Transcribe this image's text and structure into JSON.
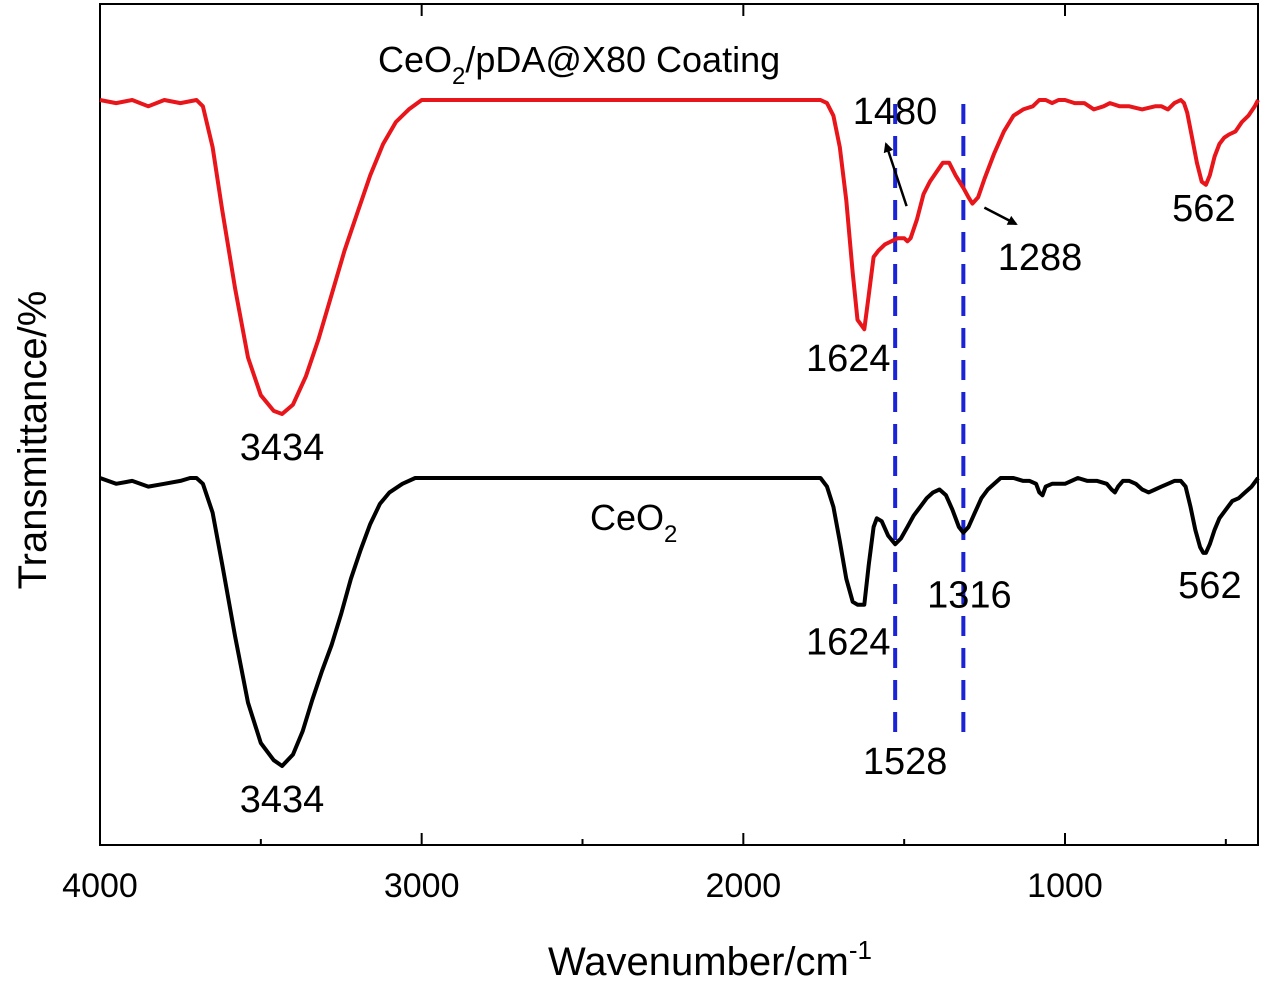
{
  "chart_data": {
    "type": "line",
    "x_axis": {
      "label_main": "Wavenumber/cm",
      "label_sup": "-1",
      "range": [
        4000,
        400
      ],
      "ticks": [
        4000,
        3000,
        2000,
        1000
      ],
      "tick_labels": [
        "4000",
        "3000",
        "2000",
        "1000"
      ],
      "reversed": true
    },
    "y_axis": {
      "label": "Transmittance/%",
      "ticks": false
    },
    "grid": false,
    "series": [
      {
        "key": "coating",
        "name": "CeO₂/pDA@X80 Coating",
        "name_parts": [
          "CeO",
          "2",
          "/pDA@X80 Coating"
        ],
        "color": "#e8151b",
        "points": [
          [
            4000,
            0.0
          ],
          [
            3950,
            0.01
          ],
          [
            3900,
            0.0
          ],
          [
            3850,
            0.02
          ],
          [
            3800,
            0.0
          ],
          [
            3750,
            0.01
          ],
          [
            3700,
            0.0
          ],
          [
            3680,
            0.02
          ],
          [
            3650,
            0.15
          ],
          [
            3620,
            0.35
          ],
          [
            3580,
            0.6
          ],
          [
            3540,
            0.82
          ],
          [
            3500,
            0.94
          ],
          [
            3460,
            0.99
          ],
          [
            3434,
            1.0
          ],
          [
            3400,
            0.97
          ],
          [
            3360,
            0.88
          ],
          [
            3320,
            0.76
          ],
          [
            3280,
            0.62
          ],
          [
            3240,
            0.48
          ],
          [
            3200,
            0.36
          ],
          [
            3160,
            0.24
          ],
          [
            3120,
            0.14
          ],
          [
            3080,
            0.07
          ],
          [
            3040,
            0.03
          ],
          [
            3000,
            0.0
          ],
          [
            2900,
            0.0
          ],
          [
            2700,
            0.0
          ],
          [
            2500,
            0.0
          ],
          [
            2300,
            0.0
          ],
          [
            2100,
            0.0
          ],
          [
            1900,
            0.0
          ],
          [
            1800,
            0.0
          ],
          [
            1760,
            0.0
          ],
          [
            1740,
            0.01
          ],
          [
            1720,
            0.05
          ],
          [
            1700,
            0.15
          ],
          [
            1680,
            0.32
          ],
          [
            1660,
            0.55
          ],
          [
            1645,
            0.7
          ],
          [
            1624,
            0.73
          ],
          [
            1610,
            0.62
          ],
          [
            1595,
            0.5
          ],
          [
            1580,
            0.48
          ],
          [
            1560,
            0.46
          ],
          [
            1540,
            0.45
          ],
          [
            1520,
            0.44
          ],
          [
            1500,
            0.44
          ],
          [
            1490,
            0.45
          ],
          [
            1480,
            0.44
          ],
          [
            1460,
            0.38
          ],
          [
            1440,
            0.3
          ],
          [
            1420,
            0.26
          ],
          [
            1400,
            0.23
          ],
          [
            1380,
            0.2
          ],
          [
            1360,
            0.2
          ],
          [
            1340,
            0.24
          ],
          [
            1316,
            0.28
          ],
          [
            1300,
            0.31
          ],
          [
            1288,
            0.33
          ],
          [
            1270,
            0.31
          ],
          [
            1250,
            0.25
          ],
          [
            1220,
            0.17
          ],
          [
            1190,
            0.1
          ],
          [
            1160,
            0.05
          ],
          [
            1130,
            0.03
          ],
          [
            1100,
            0.02
          ],
          [
            1080,
            0.0
          ],
          [
            1060,
            0.0
          ],
          [
            1040,
            0.01
          ],
          [
            1020,
            0.0
          ],
          [
            1000,
            0.0
          ],
          [
            970,
            0.01
          ],
          [
            940,
            0.01
          ],
          [
            910,
            0.03
          ],
          [
            880,
            0.02
          ],
          [
            860,
            0.01
          ],
          [
            830,
            0.02
          ],
          [
            800,
            0.02
          ],
          [
            760,
            0.03
          ],
          [
            720,
            0.02
          ],
          [
            700,
            0.02
          ],
          [
            680,
            0.03
          ],
          [
            660,
            0.01
          ],
          [
            640,
            0.0
          ],
          [
            630,
            0.01
          ],
          [
            620,
            0.04
          ],
          [
            605,
            0.12
          ],
          [
            590,
            0.2
          ],
          [
            575,
            0.26
          ],
          [
            562,
            0.27
          ],
          [
            550,
            0.24
          ],
          [
            535,
            0.18
          ],
          [
            520,
            0.14
          ],
          [
            505,
            0.12
          ],
          [
            490,
            0.11
          ],
          [
            470,
            0.1
          ],
          [
            450,
            0.07
          ],
          [
            430,
            0.05
          ],
          [
            410,
            0.02
          ],
          [
            400,
            0.0
          ]
        ]
      },
      {
        "key": "ceo2",
        "name": "CeO₂",
        "name_parts": [
          "CeO",
          "2",
          ""
        ],
        "color": "#000000",
        "points": [
          [
            4000,
            0.0
          ],
          [
            3950,
            0.02
          ],
          [
            3900,
            0.01
          ],
          [
            3850,
            0.03
          ],
          [
            3800,
            0.02
          ],
          [
            3750,
            0.01
          ],
          [
            3720,
            0.0
          ],
          [
            3700,
            0.0
          ],
          [
            3680,
            0.02
          ],
          [
            3650,
            0.12
          ],
          [
            3620,
            0.3
          ],
          [
            3580,
            0.55
          ],
          [
            3540,
            0.78
          ],
          [
            3500,
            0.92
          ],
          [
            3460,
            0.98
          ],
          [
            3434,
            1.0
          ],
          [
            3400,
            0.96
          ],
          [
            3370,
            0.88
          ],
          [
            3340,
            0.77
          ],
          [
            3310,
            0.67
          ],
          [
            3280,
            0.58
          ],
          [
            3250,
            0.47
          ],
          [
            3220,
            0.35
          ],
          [
            3190,
            0.25
          ],
          [
            3160,
            0.16
          ],
          [
            3130,
            0.09
          ],
          [
            3100,
            0.05
          ],
          [
            3060,
            0.02
          ],
          [
            3020,
            0.0
          ],
          [
            3000,
            0.0
          ],
          [
            2800,
            0.0
          ],
          [
            2600,
            0.0
          ],
          [
            2400,
            0.0
          ],
          [
            2200,
            0.0
          ],
          [
            2000,
            0.0
          ],
          [
            1850,
            0.0
          ],
          [
            1760,
            0.0
          ],
          [
            1740,
            0.03
          ],
          [
            1720,
            0.1
          ],
          [
            1700,
            0.22
          ],
          [
            1680,
            0.35
          ],
          [
            1660,
            0.43
          ],
          [
            1645,
            0.44
          ],
          [
            1624,
            0.44
          ],
          [
            1610,
            0.3
          ],
          [
            1595,
            0.17
          ],
          [
            1585,
            0.14
          ],
          [
            1570,
            0.15
          ],
          [
            1550,
            0.2
          ],
          [
            1528,
            0.23
          ],
          [
            1510,
            0.21
          ],
          [
            1490,
            0.17
          ],
          [
            1470,
            0.13
          ],
          [
            1450,
            0.1
          ],
          [
            1430,
            0.07
          ],
          [
            1410,
            0.05
          ],
          [
            1390,
            0.04
          ],
          [
            1370,
            0.06
          ],
          [
            1350,
            0.11
          ],
          [
            1330,
            0.17
          ],
          [
            1316,
            0.19
          ],
          [
            1300,
            0.17
          ],
          [
            1280,
            0.12
          ],
          [
            1260,
            0.07
          ],
          [
            1240,
            0.04
          ],
          [
            1220,
            0.02
          ],
          [
            1200,
            0.0
          ],
          [
            1160,
            0.0
          ],
          [
            1130,
            0.01
          ],
          [
            1110,
            0.01
          ],
          [
            1090,
            0.02
          ],
          [
            1080,
            0.05
          ],
          [
            1070,
            0.06
          ],
          [
            1060,
            0.03
          ],
          [
            1040,
            0.02
          ],
          [
            1000,
            0.02
          ],
          [
            960,
            0.0
          ],
          [
            930,
            0.01
          ],
          [
            900,
            0.01
          ],
          [
            870,
            0.02
          ],
          [
            855,
            0.04
          ],
          [
            845,
            0.05
          ],
          [
            835,
            0.03
          ],
          [
            820,
            0.01
          ],
          [
            800,
            0.01
          ],
          [
            780,
            0.02
          ],
          [
            760,
            0.04
          ],
          [
            740,
            0.05
          ],
          [
            720,
            0.04
          ],
          [
            700,
            0.03
          ],
          [
            680,
            0.02
          ],
          [
            660,
            0.01
          ],
          [
            640,
            0.01
          ],
          [
            625,
            0.03
          ],
          [
            610,
            0.1
          ],
          [
            595,
            0.18
          ],
          [
            580,
            0.24
          ],
          [
            570,
            0.26
          ],
          [
            562,
            0.26
          ],
          [
            550,
            0.23
          ],
          [
            535,
            0.18
          ],
          [
            520,
            0.14
          ],
          [
            500,
            0.11
          ],
          [
            480,
            0.08
          ],
          [
            460,
            0.07
          ],
          [
            440,
            0.05
          ],
          [
            420,
            0.03
          ],
          [
            400,
            0.0
          ]
        ]
      }
    ],
    "annotations": [
      {
        "series": "coating",
        "x": 3434,
        "text": "3434"
      },
      {
        "series": "coating",
        "x": 1624,
        "text": "1624"
      },
      {
        "series": "coating",
        "x": 1480,
        "text": "1480"
      },
      {
        "series": "coating",
        "x": 1288,
        "text": "1288"
      },
      {
        "series": "coating",
        "x": 562,
        "text": "562"
      },
      {
        "series": "ceo2",
        "x": 3434,
        "text": "3434"
      },
      {
        "series": "ceo2",
        "x": 1624,
        "text": "1624"
      },
      {
        "series": "ceo2",
        "x": 1528,
        "text": "1528"
      },
      {
        "series": "ceo2",
        "x": 1316,
        "text": "1316"
      },
      {
        "series": "ceo2",
        "x": 562,
        "text": "562"
      }
    ],
    "reference_lines": [
      {
        "x": 1528,
        "color": "#1a23d6",
        "style": "dashed"
      },
      {
        "x": 1316,
        "color": "#1a23d6",
        "style": "dashed"
      }
    ]
  }
}
